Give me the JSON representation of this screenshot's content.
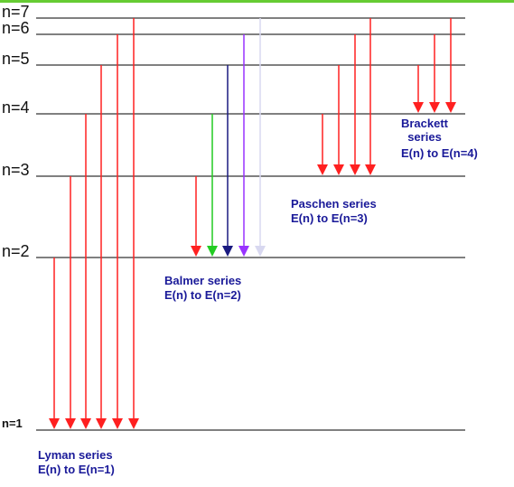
{
  "colors": {
    "top_bar": "#66cc33",
    "level_line": "#808080",
    "red": "#ff2020",
    "green": "#22cc22",
    "navy": "#1a1a80",
    "violet": "#9933ff",
    "pale": "#d8d8f0",
    "series_text": "#1a1a99"
  },
  "levels": [
    {
      "n": 1,
      "label": "n=1",
      "style": "small"
    },
    {
      "n": 2,
      "label": "n=2",
      "style": "normal"
    },
    {
      "n": 3,
      "label": "n=3",
      "style": "normal"
    },
    {
      "n": 4,
      "label": "n=4",
      "style": "normal"
    },
    {
      "n": 5,
      "label": "n=5",
      "style": "normal"
    },
    {
      "n": 6,
      "label": "n=6",
      "style": "normal"
    },
    {
      "n": 7,
      "label": "n=7",
      "style": "normal"
    }
  ],
  "series": [
    {
      "id": "lyman",
      "name": "Lyman series",
      "formula": "E(n) to E(n=1)",
      "to": 1,
      "transitions": [
        {
          "from": 2,
          "color": "red"
        },
        {
          "from": 3,
          "color": "red"
        },
        {
          "from": 4,
          "color": "red"
        },
        {
          "from": 5,
          "color": "red"
        },
        {
          "from": 6,
          "color": "red"
        },
        {
          "from": 7,
          "color": "red"
        }
      ]
    },
    {
      "id": "balmer",
      "name": "Balmer series",
      "formula": "E(n) to E(n=2)",
      "to": 2,
      "transitions": [
        {
          "from": 3,
          "color": "red"
        },
        {
          "from": 4,
          "color": "green"
        },
        {
          "from": 5,
          "color": "navy"
        },
        {
          "from": 6,
          "color": "violet"
        },
        {
          "from": 7,
          "color": "pale"
        }
      ]
    },
    {
      "id": "paschen",
      "name": "Paschen series",
      "formula": "E(n) to E(n=3)",
      "to": 3,
      "transitions": [
        {
          "from": 4,
          "color": "red"
        },
        {
          "from": 5,
          "color": "red"
        },
        {
          "from": 6,
          "color": "red"
        },
        {
          "from": 7,
          "color": "red"
        }
      ]
    },
    {
      "id": "brackett",
      "name": "Brackett series",
      "formula": "E(n) to E(n=4)",
      "to": 4,
      "name_lines": [
        "Brackett",
        "series"
      ],
      "transitions": [
        {
          "from": 5,
          "color": "red"
        },
        {
          "from": 6,
          "color": "red"
        },
        {
          "from": 7,
          "color": "red"
        }
      ]
    }
  ]
}
